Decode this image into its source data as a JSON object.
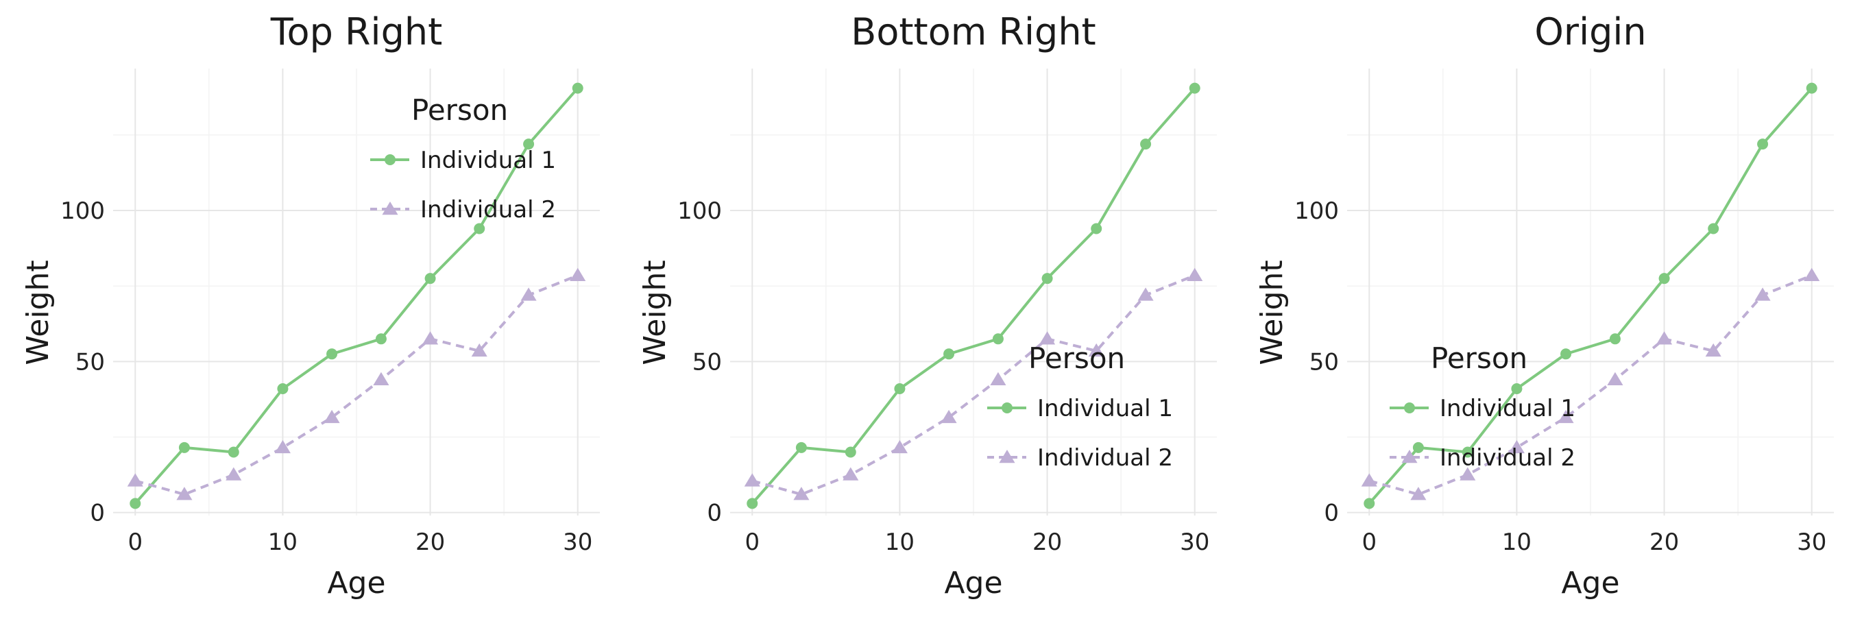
{
  "chart_data": [
    {
      "type": "line",
      "title": "Top Right",
      "legend_position": "top-right",
      "xlabel": "Age",
      "ylabel": "Weight",
      "xlim": [
        -1.5,
        31.5
      ],
      "ylim": [
        -1,
        147
      ],
      "x_ticks": [
        "0",
        "10",
        "20",
        "30"
      ],
      "y_ticks": [
        "0",
        "50",
        "100"
      ],
      "legend_title": "Person",
      "series": [
        {
          "name": "Individual 1",
          "x": [
            0,
            3.33,
            6.67,
            10,
            13.33,
            16.67,
            20,
            23.33,
            26.67,
            30
          ],
          "values": [
            3,
            21.5,
            20,
            41,
            52.5,
            57.5,
            77.5,
            94,
            122,
            140.5
          ]
        },
        {
          "name": "Individual 2",
          "x": [
            0,
            3.33,
            6.67,
            10,
            13.33,
            16.67,
            20,
            23.33,
            26.67,
            30
          ],
          "values": [
            10.5,
            6,
            12.5,
            21.5,
            31.5,
            44,
            57.5,
            53.5,
            72,
            78.5
          ]
        }
      ]
    },
    {
      "type": "line",
      "title": "Bottom Right",
      "legend_position": "bottom-right",
      "xlabel": "Age",
      "ylabel": "Weight",
      "xlim": [
        -1.5,
        31.5
      ],
      "ylim": [
        -1,
        147
      ],
      "x_ticks": [
        "0",
        "10",
        "20",
        "30"
      ],
      "y_ticks": [
        "0",
        "50",
        "100"
      ],
      "legend_title": "Person",
      "series": [
        {
          "name": "Individual 1",
          "x": [
            0,
            3.33,
            6.67,
            10,
            13.33,
            16.67,
            20,
            23.33,
            26.67,
            30
          ],
          "values": [
            3,
            21.5,
            20,
            41,
            52.5,
            57.5,
            77.5,
            94,
            122,
            140.5
          ]
        },
        {
          "name": "Individual 2",
          "x": [
            0,
            3.33,
            6.67,
            10,
            13.33,
            16.67,
            20,
            23.33,
            26.67,
            30
          ],
          "values": [
            10.5,
            6,
            12.5,
            21.5,
            31.5,
            44,
            57.5,
            53.5,
            72,
            78.5
          ]
        }
      ]
    },
    {
      "type": "line",
      "title": "Origin",
      "legend_position": "origin",
      "xlabel": "Age",
      "ylabel": "Weight",
      "xlim": [
        -1.5,
        31.5
      ],
      "ylim": [
        -1,
        147
      ],
      "x_ticks": [
        "0",
        "10",
        "20",
        "30"
      ],
      "y_ticks": [
        "0",
        "50",
        "100"
      ],
      "legend_title": "Person",
      "series": [
        {
          "name": "Individual 1",
          "x": [
            0,
            3.33,
            6.67,
            10,
            13.33,
            16.67,
            20,
            23.33,
            26.67,
            30
          ],
          "values": [
            3,
            21.5,
            20,
            41,
            52.5,
            57.5,
            77.5,
            94,
            122,
            140.5
          ]
        },
        {
          "name": "Individual 2",
          "x": [
            0,
            3.33,
            6.67,
            10,
            13.33,
            16.67,
            20,
            23.33,
            26.67,
            30
          ],
          "values": [
            10.5,
            6,
            12.5,
            21.5,
            31.5,
            44,
            57.5,
            53.5,
            72,
            78.5
          ]
        }
      ]
    }
  ],
  "style": {
    "series_colors": [
      "#7fc97f",
      "#beaed4"
    ],
    "series_markers": [
      "circle",
      "triangle"
    ],
    "series_dash": [
      "solid",
      "dashed"
    ],
    "grid": true
  }
}
